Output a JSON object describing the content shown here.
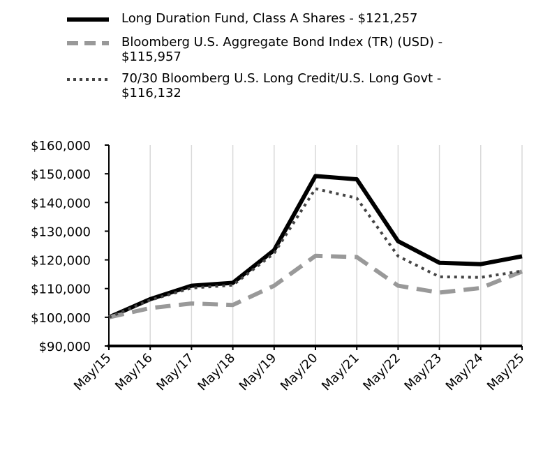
{
  "chart_data": {
    "type": "line",
    "title": "",
    "xlabel": "",
    "ylabel": "",
    "x": [
      "May/15",
      "May/16",
      "May/17",
      "May/18",
      "May/19",
      "May/20",
      "May/21",
      "May/22",
      "May/23",
      "May/24",
      "May/25"
    ],
    "ylim": [
      90000,
      160000
    ],
    "yticks": [
      "$90,000",
      "$100,000",
      "$110,000",
      "$120,000",
      "$130,000",
      "$140,000",
      "$150,000",
      "$160,000"
    ],
    "ytick_values": [
      90000,
      100000,
      110000,
      120000,
      130000,
      140000,
      150000,
      160000
    ],
    "grid": "vertical",
    "legend_position": "top",
    "series": [
      {
        "name": "Long Duration Fund, Class A Shares - $121,257",
        "style": "solid",
        "color": "#000000",
        "values": [
          100000,
          106300,
          111000,
          112000,
          123400,
          149200,
          148100,
          126500,
          119000,
          118500,
          121257
        ]
      },
      {
        "name": "Bloomberg U.S. Aggregate Bond Index (TR) (USD) - $115,957",
        "style": "dashed",
        "color": "#999999",
        "values": [
          100000,
          103200,
          104800,
          104300,
          111000,
          121400,
          121000,
          111000,
          108600,
          110200,
          115957
        ]
      },
      {
        "name": "70/30 Bloomberg U.S. Long Credit/U.S. Long Govt - $116,132",
        "style": "dotted",
        "color": "#444444",
        "values": [
          100000,
          106000,
          110200,
          111200,
          122300,
          144800,
          141500,
          121300,
          114100,
          113900,
          116132
        ]
      }
    ]
  }
}
